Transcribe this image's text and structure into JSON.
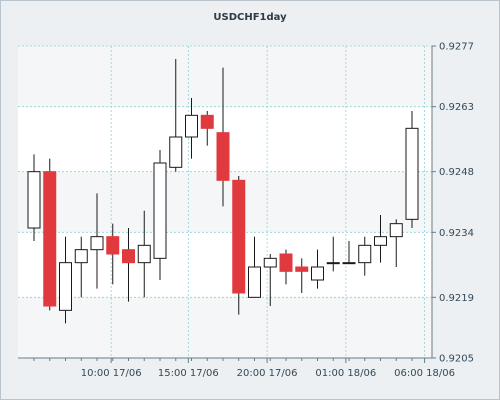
{
  "chart_data": {
    "type": "candlestick",
    "title": "USDCHF1day",
    "xlabel": "",
    "ylabel": "",
    "ylim": [
      0.9205,
      0.9277
    ],
    "y_ticks": [
      0.9277,
      0.9263,
      0.9248,
      0.9234,
      0.9219,
      0.9205
    ],
    "y_tick_labels": [
      "0.9277",
      "0.9263",
      "0.9248",
      "0.9234",
      "0.9219",
      "0.9205"
    ],
    "x_tick_labels": [
      {
        "label": "10:00 17/06",
        "index": 4.9
      },
      {
        "label": "15:00 17/06",
        "index": 9.8
      },
      {
        "label": "20:00 17/06",
        "index": 14.8
      },
      {
        "label": "01:00 18/06",
        "index": 19.8
      },
      {
        "label": "06:00 18/06",
        "index": 24.8
      }
    ],
    "grid": true,
    "up_color": "#ffffff",
    "down_color": "#e03a3e",
    "candles": [
      {
        "open": 0.9235,
        "high": 0.9252,
        "low": 0.9232,
        "close": 0.9248
      },
      {
        "open": 0.9248,
        "high": 0.9251,
        "low": 0.9216,
        "close": 0.9217
      },
      {
        "open": 0.9216,
        "high": 0.9233,
        "low": 0.9213,
        "close": 0.9227
      },
      {
        "open": 0.9227,
        "high": 0.9233,
        "low": 0.9219,
        "close": 0.923
      },
      {
        "open": 0.923,
        "high": 0.9243,
        "low": 0.9221,
        "close": 0.9233
      },
      {
        "open": 0.9233,
        "high": 0.9236,
        "low": 0.9222,
        "close": 0.9229
      },
      {
        "open": 0.923,
        "high": 0.9235,
        "low": 0.9218,
        "close": 0.9227
      },
      {
        "open": 0.9227,
        "high": 0.9239,
        "low": 0.9219,
        "close": 0.9231
      },
      {
        "open": 0.9228,
        "high": 0.9253,
        "low": 0.9223,
        "close": 0.925
      },
      {
        "open": 0.9249,
        "high": 0.9274,
        "low": 0.9248,
        "close": 0.9256
      },
      {
        "open": 0.9256,
        "high": 0.9265,
        "low": 0.9251,
        "close": 0.9261
      },
      {
        "open": 0.9261,
        "high": 0.9262,
        "low": 0.9254,
        "close": 0.9258
      },
      {
        "open": 0.9257,
        "high": 0.9272,
        "low": 0.924,
        "close": 0.9246
      },
      {
        "open": 0.9246,
        "high": 0.9247,
        "low": 0.9215,
        "close": 0.922
      },
      {
        "open": 0.9219,
        "high": 0.9233,
        "low": 0.9219,
        "close": 0.9226
      },
      {
        "open": 0.9226,
        "high": 0.9229,
        "low": 0.9217,
        "close": 0.9228
      },
      {
        "open": 0.9229,
        "high": 0.923,
        "low": 0.9222,
        "close": 0.9225
      },
      {
        "open": 0.9226,
        "high": 0.9228,
        "low": 0.922,
        "close": 0.9225
      },
      {
        "open": 0.9223,
        "high": 0.923,
        "low": 0.9221,
        "close": 0.9226
      },
      {
        "open": 0.9227,
        "high": 0.9233,
        "low": 0.9225,
        "close": 0.9227
      },
      {
        "open": 0.9227,
        "high": 0.9232,
        "low": 0.9227,
        "close": 0.9227
      },
      {
        "open": 0.9227,
        "high": 0.9233,
        "low": 0.9224,
        "close": 0.9231
      },
      {
        "open": 0.9231,
        "high": 0.9238,
        "low": 0.9227,
        "close": 0.9233
      },
      {
        "open": 0.9233,
        "high": 0.9237,
        "low": 0.9226,
        "close": 0.9236
      },
      {
        "open": 0.9237,
        "high": 0.9262,
        "low": 0.9235,
        "close": 0.9258
      }
    ]
  }
}
